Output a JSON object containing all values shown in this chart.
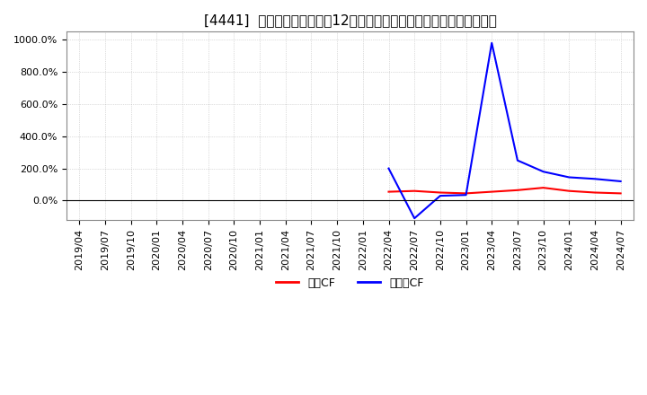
{
  "title": "[4441]  キャッシュフローの12か月移動合計の対前年同期増減率の推移",
  "ylim": [
    -120,
    1050
  ],
  "yticks": [
    0,
    200,
    400,
    600,
    800,
    1000
  ],
  "ytick_labels": [
    "0.0%",
    "200.0%",
    "400.0%",
    "600.0%",
    "800.0%",
    "1000.0%"
  ],
  "legend_labels": [
    "営業CF",
    "フリーCF"
  ],
  "line_colors": [
    "#ff0000",
    "#0000ff"
  ],
  "background_color": "#ffffff",
  "grid_color": "#aaaaaa",
  "x_dates": [
    "2019/04",
    "2019/07",
    "2019/10",
    "2020/01",
    "2020/04",
    "2020/07",
    "2020/10",
    "2021/01",
    "2021/04",
    "2021/07",
    "2021/10",
    "2022/01",
    "2022/04",
    "2022/07",
    "2022/10",
    "2023/01",
    "2023/04",
    "2023/07",
    "2023/10",
    "2024/01",
    "2024/04",
    "2024/07"
  ],
  "operating_cf": [
    null,
    null,
    null,
    null,
    null,
    null,
    null,
    null,
    null,
    null,
    null,
    null,
    55,
    60,
    50,
    45,
    55,
    65,
    80,
    60,
    50,
    45
  ],
  "free_cf": [
    null,
    null,
    null,
    null,
    null,
    null,
    null,
    null,
    null,
    null,
    null,
    null,
    200,
    -110,
    30,
    35,
    980,
    250,
    180,
    145,
    135,
    120
  ],
  "title_fontsize": 11,
  "tick_fontsize": 8,
  "font_family": "IPAexGothic"
}
